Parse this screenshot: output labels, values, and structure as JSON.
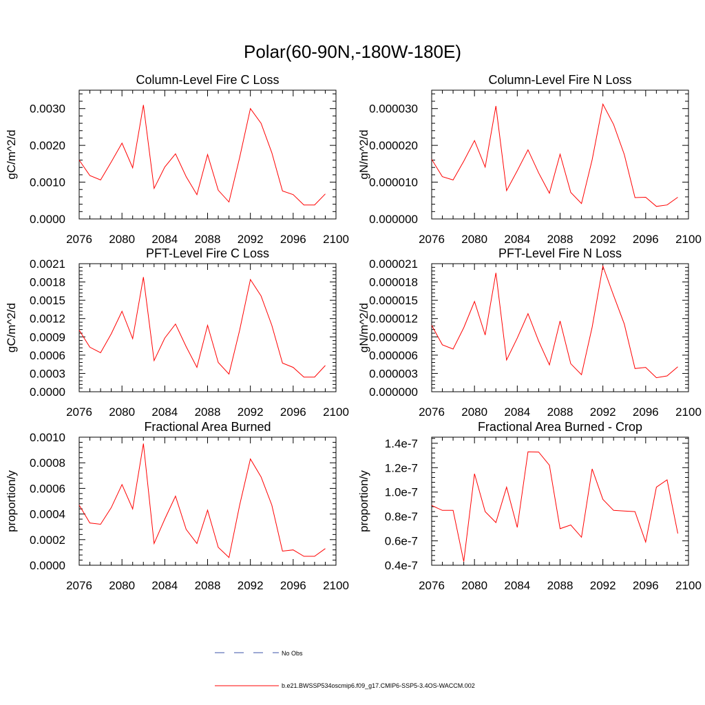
{
  "figure": {
    "title": "Polar(60-90N,-180W-180E)"
  },
  "legend": {
    "items": [
      {
        "label": "No Obs",
        "color": "#3a50a8",
        "style": "dashed"
      },
      {
        "label": "b.e21.BWSSP534oscmip6.f09_g17.CMIP6-SSP5-3.4OS-WACCM.002",
        "color": "#ff0000",
        "style": "solid"
      }
    ]
  },
  "chart_data": [
    {
      "type": "line",
      "title": "Column-Level Fire C Loss",
      "ylabel": "gC/m^2/d",
      "xlim": [
        2076,
        2100
      ],
      "ylim": [
        0,
        0.0035
      ],
      "xticks": [
        "2076",
        "2080",
        "2084",
        "2088",
        "2092",
        "2096",
        "2100"
      ],
      "yticks": [
        {
          "v": 0,
          "label": "0.0000"
        },
        {
          "v": 0.001,
          "label": "0.0010"
        },
        {
          "v": 0.002,
          "label": "0.0020"
        },
        {
          "v": 0.003,
          "label": "0.0030"
        }
      ],
      "x": [
        2076,
        2077,
        2078,
        2079,
        2080,
        2081,
        2082,
        2083,
        2084,
        2085,
        2086,
        2087,
        2088,
        2089,
        2090,
        2091,
        2092,
        2093,
        2094,
        2095,
        2096,
        2097,
        2098,
        2099
      ],
      "series": [
        {
          "name": "b.e21.BWSSP534oscmip6.f09_g17.CMIP6-SSP5-3.4OS-WACCM.002",
          "color": "#ff0000",
          "values": [
            0.0016,
            0.00118,
            0.00106,
            0.00155,
            0.00206,
            0.00139,
            0.0031,
            0.00083,
            0.00141,
            0.00177,
            0.00115,
            0.00066,
            0.00175,
            0.00078,
            0.00046,
            0.00167,
            0.003,
            0.0026,
            0.0018,
            0.00076,
            0.00066,
            0.00038,
            0.00038,
            0.00068
          ]
        }
      ]
    },
    {
      "type": "line",
      "title": "Column-Level Fire N Loss",
      "ylabel": "gN/m^2/d",
      "xlim": [
        2076,
        2100
      ],
      "ylim": [
        0,
        3.5e-05
      ],
      "xticks": [
        "2076",
        "2080",
        "2084",
        "2088",
        "2092",
        "2096",
        "2100"
      ],
      "yticks": [
        {
          "v": 0,
          "label": "0.000000"
        },
        {
          "v": 1e-05,
          "label": "0.000010"
        },
        {
          "v": 2e-05,
          "label": "0.000020"
        },
        {
          "v": 3e-05,
          "label": "0.000030"
        }
      ],
      "x": [
        2076,
        2077,
        2078,
        2079,
        2080,
        2081,
        2082,
        2083,
        2084,
        2085,
        2086,
        2087,
        2088,
        2089,
        2090,
        2091,
        2092,
        2093,
        2094,
        2095,
        2096,
        2097,
        2098,
        2099
      ],
      "series": [
        {
          "name": "b.e21.BWSSP534oscmip6.f09_g17.CMIP6-SSP5-3.4OS-WACCM.002",
          "color": "#ff0000",
          "values": [
            1.62e-05,
            1.15e-05,
            1.06e-05,
            1.57e-05,
            2.13e-05,
            1.41e-05,
            3.07e-05,
            7.7e-06,
            1.31e-05,
            1.88e-05,
            1.25e-05,
            7e-06,
            1.76e-05,
            7.2e-06,
            4.2e-06,
            1.61e-05,
            3.12e-05,
            2.57e-05,
            1.75e-05,
            5.8e-06,
            5.9e-06,
            3.4e-06,
            3.8e-06,
            5.9e-06
          ]
        }
      ]
    },
    {
      "type": "line",
      "title": "PFT-Level Fire C Loss",
      "ylabel": "gC/m^2/d",
      "xlim": [
        2076,
        2100
      ],
      "ylim": [
        0,
        0.0021
      ],
      "xticks": [
        "2076",
        "2080",
        "2084",
        "2088",
        "2092",
        "2096",
        "2100"
      ],
      "yticks": [
        {
          "v": 0,
          "label": "0.0000"
        },
        {
          "v": 0.0003,
          "label": "0.0003"
        },
        {
          "v": 0.0006,
          "label": "0.0006"
        },
        {
          "v": 0.0009,
          "label": "0.0009"
        },
        {
          "v": 0.0012,
          "label": "0.0012"
        },
        {
          "v": 0.0015,
          "label": "0.0015"
        },
        {
          "v": 0.0018,
          "label": "0.0018"
        },
        {
          "v": 0.0021,
          "label": "0.0021"
        }
      ],
      "x": [
        2076,
        2077,
        2078,
        2079,
        2080,
        2081,
        2082,
        2083,
        2084,
        2085,
        2086,
        2087,
        2088,
        2089,
        2090,
        2091,
        2092,
        2093,
        2094,
        2095,
        2096,
        2097,
        2098,
        2099
      ],
      "series": [
        {
          "name": "b.e21.BWSSP534oscmip6.f09_g17.CMIP6-SSP5-3.4OS-WACCM.002",
          "color": "#ff0000",
          "values": [
            0.00101,
            0.00073,
            0.00064,
            0.00095,
            0.00132,
            0.00087,
            0.00188,
            0.00051,
            0.00088,
            0.00111,
            0.00074,
            0.0004,
            0.00109,
            0.00048,
            0.00029,
            0.00101,
            0.00184,
            0.00157,
            0.00109,
            0.00047,
            0.0004,
            0.00024,
            0.00024,
            0.00043
          ]
        }
      ]
    },
    {
      "type": "line",
      "title": "PFT-Level Fire N Loss",
      "ylabel": "gN/m^2/d",
      "xlim": [
        2076,
        2100
      ],
      "ylim": [
        0,
        2.1e-05
      ],
      "xticks": [
        "2076",
        "2080",
        "2084",
        "2088",
        "2092",
        "2096",
        "2100"
      ],
      "yticks": [
        {
          "v": 0,
          "label": "0.000000"
        },
        {
          "v": 3e-06,
          "label": "0.000003"
        },
        {
          "v": 6e-06,
          "label": "0.000006"
        },
        {
          "v": 9e-06,
          "label": "0.000009"
        },
        {
          "v": 1.2e-05,
          "label": "0.000012"
        },
        {
          "v": 1.5e-05,
          "label": "0.000015"
        },
        {
          "v": 1.8e-05,
          "label": "0.000018"
        },
        {
          "v": 2.1e-05,
          "label": "0.000021"
        }
      ],
      "x": [
        2076,
        2077,
        2078,
        2079,
        2080,
        2081,
        2082,
        2083,
        2084,
        2085,
        2086,
        2087,
        2088,
        2089,
        2090,
        2091,
        2092,
        2093,
        2094,
        2095,
        2096,
        2097,
        2098,
        2099
      ],
      "series": [
        {
          "name": "b.e21.BWSSP534oscmip6.f09_g17.CMIP6-SSP5-3.4OS-WACCM.002",
          "color": "#ff0000",
          "values": [
            1.09e-05,
            7.7e-06,
            7e-06,
            1.05e-05,
            1.48e-05,
            9.3e-06,
            1.95e-05,
            5.2e-06,
            8.8e-06,
            1.28e-05,
            8.3e-06,
            4.4e-06,
            1.16e-05,
            4.6e-06,
            2.8e-06,
            1.06e-05,
            2.06e-05,
            1.58e-05,
            1.11e-05,
            3.8e-06,
            4e-06,
            2.3e-06,
            2.6e-06,
            4.1e-06
          ]
        }
      ]
    },
    {
      "type": "line",
      "title": "Fractional Area Burned",
      "ylabel": "proportion/y",
      "xlim": [
        2076,
        2100
      ],
      "ylim": [
        0,
        0.001
      ],
      "xticks": [
        "2076",
        "2080",
        "2084",
        "2088",
        "2092",
        "2096",
        "2100"
      ],
      "yticks": [
        {
          "v": 0,
          "label": "0.0000"
        },
        {
          "v": 0.0002,
          "label": "0.0002"
        },
        {
          "v": 0.0004,
          "label": "0.0004"
        },
        {
          "v": 0.0006,
          "label": "0.0006"
        },
        {
          "v": 0.0008,
          "label": "0.0008"
        },
        {
          "v": 0.001,
          "label": "0.0010"
        }
      ],
      "x": [
        2076,
        2077,
        2078,
        2079,
        2080,
        2081,
        2082,
        2083,
        2084,
        2085,
        2086,
        2087,
        2088,
        2089,
        2090,
        2091,
        2092,
        2093,
        2094,
        2095,
        2096,
        2097,
        2098,
        2099
      ],
      "series": [
        {
          "name": "b.e21.BWSSP534oscmip6.f09_g17.CMIP6-SSP5-3.4OS-WACCM.002",
          "color": "#ff0000",
          "values": [
            0.00047,
            0.00033,
            0.00032,
            0.00045,
            0.00063,
            0.00044,
            0.00095,
            0.00017,
            0.00036,
            0.00054,
            0.00028,
            0.00017,
            0.00043,
            0.00014,
            6e-05,
            0.00047,
            0.00083,
            0.00069,
            0.00047,
            0.00011,
            0.00012,
            7e-05,
            7e-05,
            0.00013
          ]
        }
      ]
    },
    {
      "type": "line",
      "title": "Fractional Area Burned - Crop",
      "ylabel": "proportion/y",
      "xlim": [
        2076,
        2100
      ],
      "ylim": [
        4e-08,
        1.45e-07
      ],
      "xticks": [
        "2076",
        "2080",
        "2084",
        "2088",
        "2092",
        "2096",
        "2100"
      ],
      "yticks": [
        {
          "v": 4e-08,
          "label": "0.4e-7"
        },
        {
          "v": 6e-08,
          "label": "0.6e-7"
        },
        {
          "v": 8e-08,
          "label": "0.8e-7"
        },
        {
          "v": 1e-07,
          "label": "1.0e-7"
        },
        {
          "v": 1.2e-07,
          "label": "1.2e-7"
        },
        {
          "v": 1.4e-07,
          "label": "1.4e-7"
        }
      ],
      "x": [
        2076,
        2077,
        2078,
        2079,
        2080,
        2081,
        2082,
        2083,
        2084,
        2085,
        2086,
        2087,
        2088,
        2089,
        2090,
        2091,
        2092,
        2093,
        2094,
        2095,
        2096,
        2097,
        2098,
        2099
      ],
      "series": [
        {
          "name": "b.e21.BWSSP534oscmip6.f09_g17.CMIP6-SSP5-3.4OS-WACCM.002",
          "color": "#ff0000",
          "values": [
            8.9e-08,
            8.5e-08,
            8.5e-08,
            4.3e-08,
            1.15e-07,
            8.4e-08,
            7.5e-08,
            1.04e-07,
            7.1e-08,
            1.33e-07,
            1.328e-07,
            1.22e-07,
            7e-08,
            7.3e-08,
            6.3e-08,
            1.19e-07,
            9.4e-08,
            8.5e-08,
            8.45e-08,
            8.4e-08,
            5.9e-08,
            1.04e-07,
            1.1e-07,
            6.6e-08
          ]
        }
      ]
    }
  ]
}
